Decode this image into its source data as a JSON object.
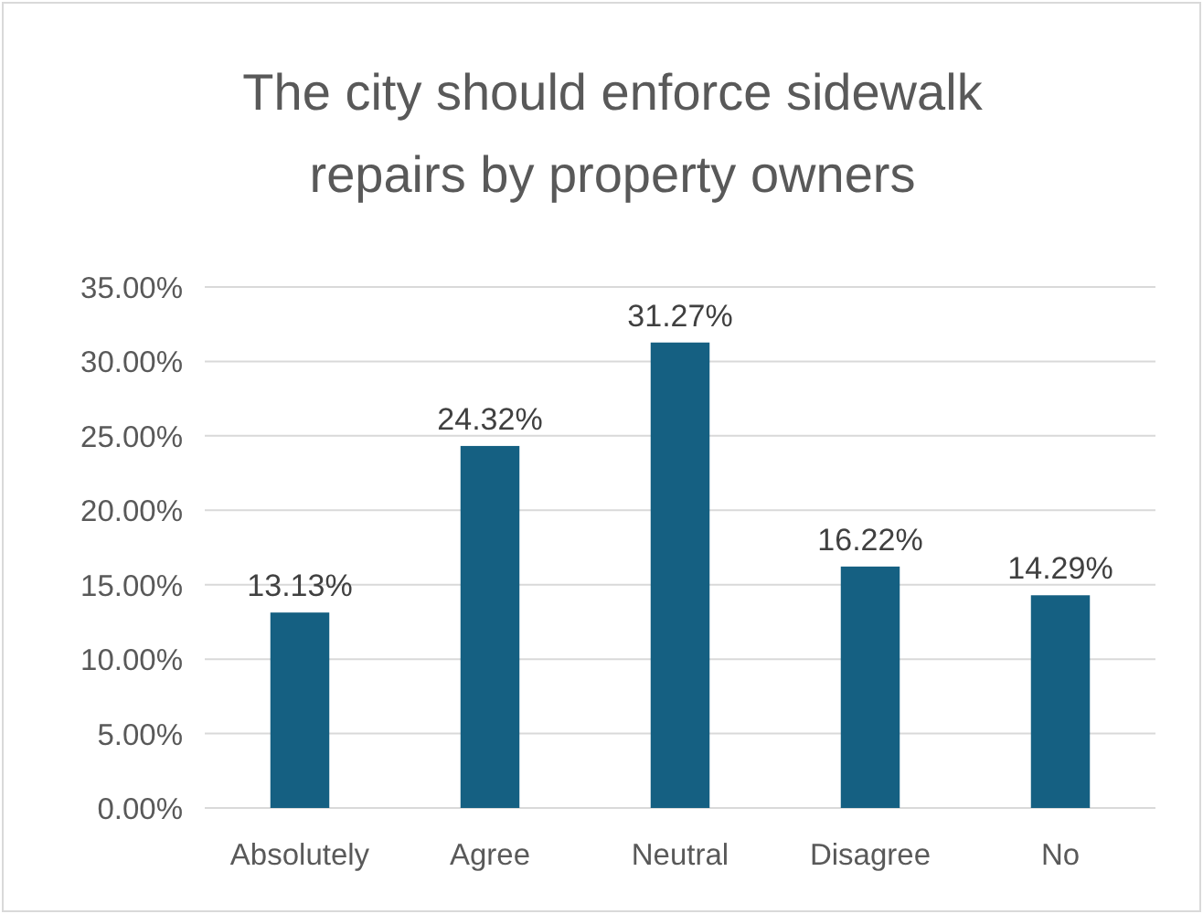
{
  "chart_data": {
    "type": "bar",
    "title": "The city should enforce sidewalk repairs by property owners",
    "categories": [
      "Absolutely",
      "Agree",
      "Neutral",
      "Disagree",
      "No"
    ],
    "values": [
      13.13,
      24.32,
      31.27,
      16.22,
      14.29
    ],
    "value_labels": [
      "13.13%",
      "24.32%",
      "31.27%",
      "16.22%",
      "14.29%"
    ],
    "color": "#156082",
    "ylim": [
      0,
      35
    ],
    "yticks": [
      {
        "value": 0,
        "label": "0.00%"
      },
      {
        "value": 5,
        "label": "5.00%"
      },
      {
        "value": 10,
        "label": "10.00%"
      },
      {
        "value": 15,
        "label": "15.00%"
      },
      {
        "value": 20,
        "label": "20.00%"
      },
      {
        "value": 25,
        "label": "25.00%"
      },
      {
        "value": 30,
        "label": "30.00%"
      },
      {
        "value": 35,
        "label": "35.00%"
      }
    ],
    "grid": "y"
  }
}
